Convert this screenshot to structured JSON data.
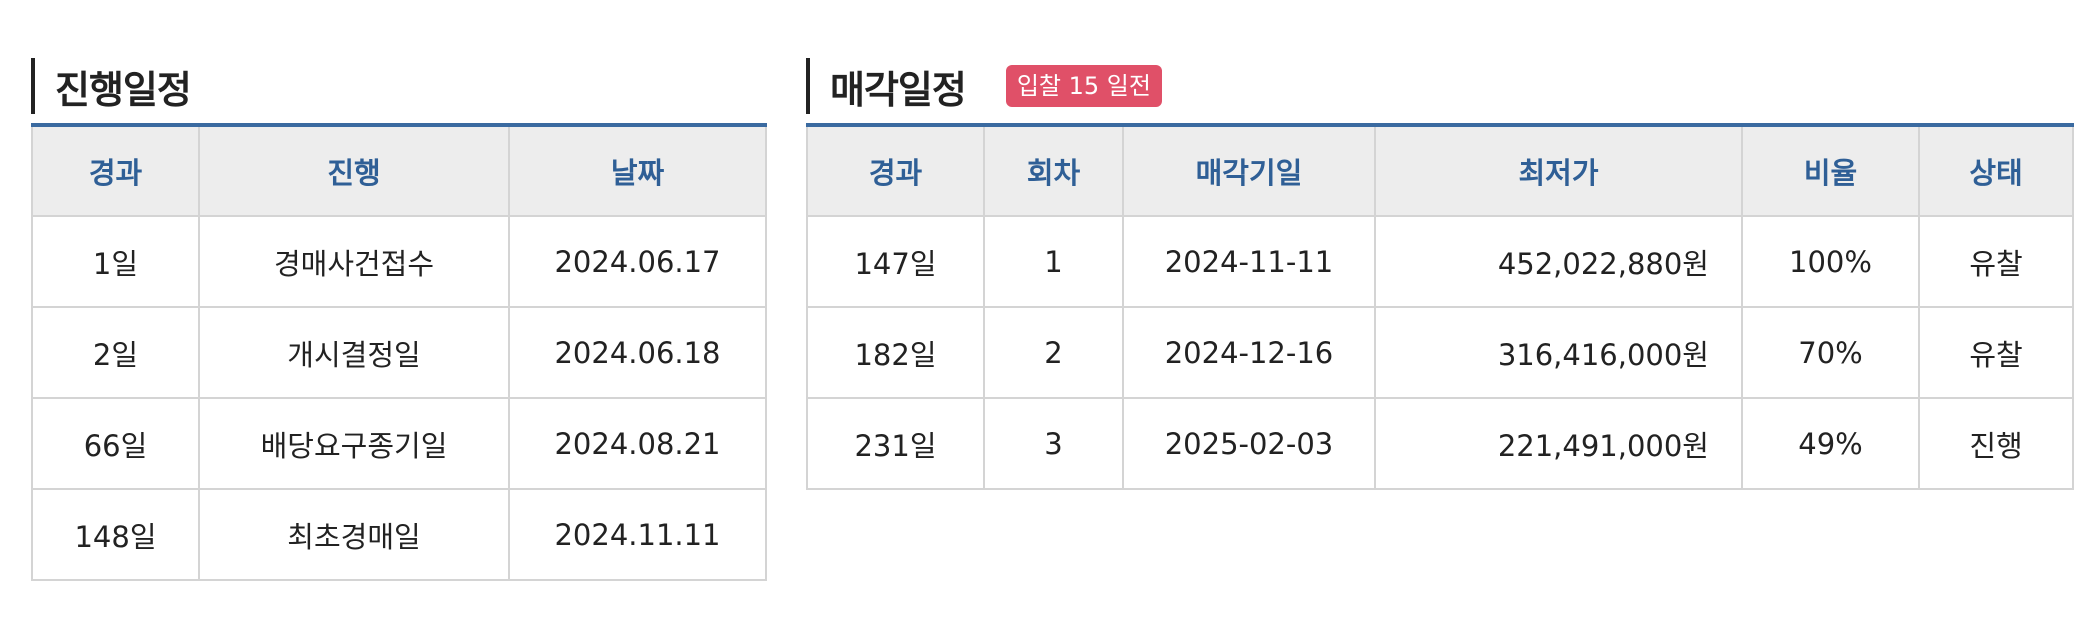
{
  "progress": {
    "title": "진행일정",
    "columns": [
      "경과",
      "진행",
      "날짜"
    ],
    "rows": [
      [
        "1일",
        "경매사건접수",
        "2024.06.17"
      ],
      [
        "2일",
        "개시결정일",
        "2024.06.18"
      ],
      [
        "66일",
        "배당요구종기일",
        "2024.08.21"
      ],
      [
        "148일",
        "최초경매일",
        "2024.11.11"
      ]
    ]
  },
  "sale": {
    "title": "매각일정",
    "badge": "입찰 15 일전",
    "badge_color": "#e05068",
    "columns": [
      "경과",
      "회차",
      "매각기일",
      "최저가",
      "비율",
      "상태"
    ],
    "rows": [
      [
        "147일",
        "1",
        "2024-11-11",
        "452,022,880원",
        "100%",
        "유찰"
      ],
      [
        "182일",
        "2",
        "2024-12-16",
        "316,416,000원",
        "70%",
        "유찰"
      ],
      [
        "231일",
        "3",
        "2025-02-03",
        "221,491,000원",
        "49%",
        "진행"
      ]
    ]
  },
  "colors": {
    "header_text": "#2f5f96",
    "table_top_border": "#3a6aa0",
    "header_bg": "#ededed"
  }
}
